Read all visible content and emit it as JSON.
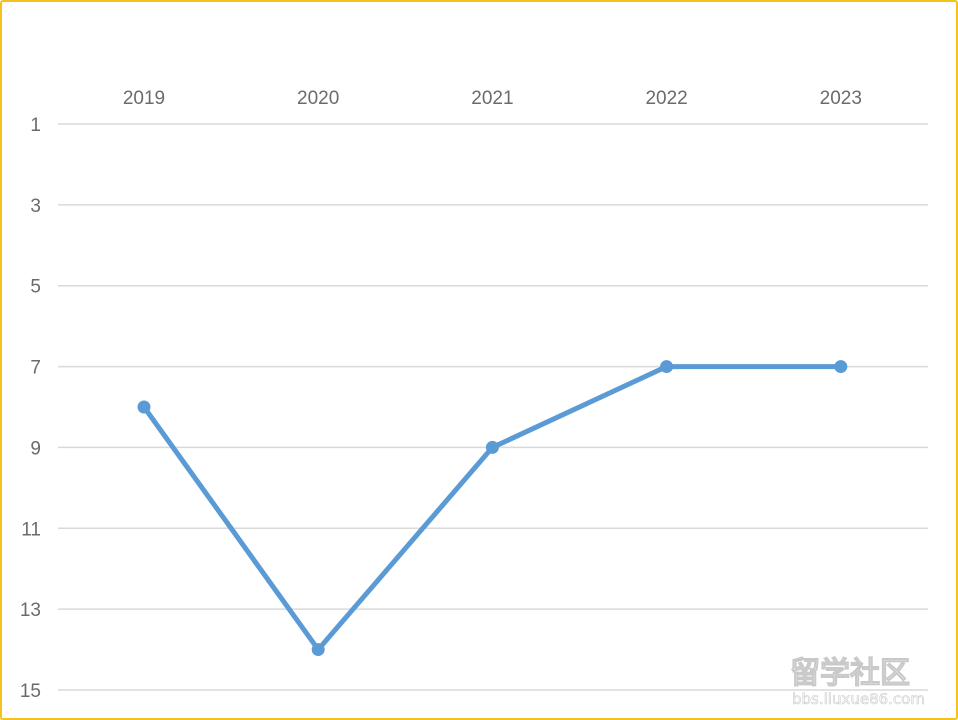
{
  "chart_data": {
    "type": "line",
    "x": [
      "2019",
      "2020",
      "2021",
      "2022",
      "2023"
    ],
    "series": [
      {
        "values": [
          8,
          14,
          9,
          7,
          7
        ],
        "color": "#5b9bd5"
      }
    ],
    "y_ticks": [
      "1",
      "3",
      "5",
      "7",
      "9",
      "11",
      "13",
      "15"
    ],
    "ylim": [
      1,
      15
    ],
    "y_reversed": true,
    "x_axis_position": "top",
    "grid": true,
    "gridline_color": "#d9d9d9",
    "frame_color": "#f5c21b",
    "title": "",
    "xlabel": "",
    "ylabel": ""
  },
  "watermark": {
    "main": "留学社区",
    "sub": "bbs.liuxue86.com"
  }
}
